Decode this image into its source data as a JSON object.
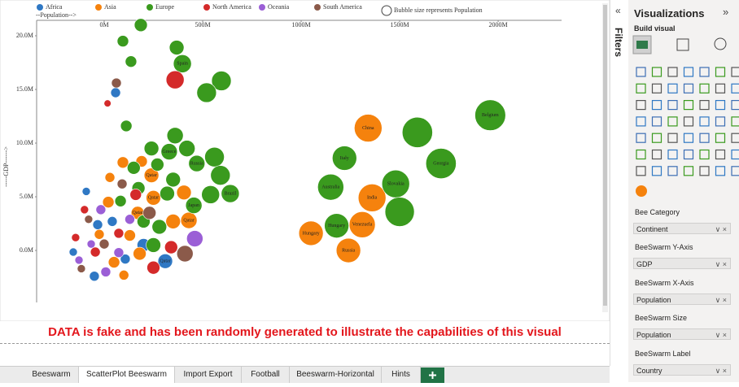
{
  "chart_data": {
    "type": "scatter",
    "x_label": "--Population-->",
    "y_label": "-----GDP------>",
    "size_legend": "Bubble size represents Population",
    "xlim": [
      -343000000,
      2322000000
    ],
    "ylim": [
      -5830000,
      21440000
    ],
    "xticks": [
      {
        "value": 0,
        "label": "0M"
      },
      {
        "value": 500000000,
        "label": "500M"
      },
      {
        "value": 1000000000,
        "label": "1000M"
      },
      {
        "value": 1500000000,
        "label": "1500M"
      },
      {
        "value": 2000000000,
        "label": "2000M"
      }
    ],
    "yticks": [
      {
        "value": 0,
        "label": "0.0M"
      },
      {
        "value": 5000000,
        "label": "5.0M"
      },
      {
        "value": 10000000,
        "label": "10.0M"
      },
      {
        "value": 15000000,
        "label": "15.0M"
      },
      {
        "value": 20000000,
        "label": "20.0M"
      }
    ],
    "series": [
      {
        "name": "Africa",
        "color": "#2f78c4",
        "x": [
          58000000,
          310000000,
          200000000,
          -33000000,
          -91000000,
          -157000000,
          41000000,
          107000000,
          -50000000
        ],
        "values": [
          14700000,
          -1000000,
          500000,
          2400000,
          5500000,
          -150000,
          2700000,
          -800000,
          -2400000
        ],
        "sizes": [
          36000000,
          220000000,
          140000000,
          36000000,
          9000000,
          9000000,
          36000000,
          36000000,
          36000000
        ],
        "labels": [
          null,
          "Qatar",
          null,
          null,
          null,
          null,
          null,
          null,
          null
        ]
      },
      {
        "name": "Asia",
        "color": "#f5820d",
        "x": [
          1340000000,
          1360000000,
          1310000000,
          1050000000,
          1240000000,
          240000000,
          250000000,
          430000000,
          170000000,
          350000000,
          405000000,
          180000000,
          95000000,
          190000000,
          29000000,
          21000000,
          130000000,
          50000000,
          100000000,
          -25000000
        ],
        "values": [
          11400000,
          4900000,
          2400000,
          1600000,
          0,
          7000000,
          4900000,
          2800000,
          3500000,
          2700000,
          5400000,
          -300000,
          8200000,
          8300000,
          6800000,
          4500000,
          1400000,
          -1100000,
          -2300000,
          1500000
        ],
        "sizes": [
          1500000000,
          1500000000,
          1280000000,
          1070000000,
          1070000000,
          220000000,
          220000000,
          320000000,
          140000000,
          220000000,
          220000000,
          140000000,
          80000000,
          80000000,
          36000000,
          80000000,
          80000000,
          80000000,
          36000000,
          36000000
        ],
        "labels": [
          "China",
          "India",
          "Venezuela",
          "Hungary",
          "Russia",
          "Qatar",
          "Qatar",
          "Qatar",
          "Qatar",
          null,
          null,
          null,
          null,
          null,
          null,
          null,
          null,
          null,
          null,
          null
        ]
      },
      {
        "name": "Europe",
        "color": "#3a9a1e",
        "x": [
          1960000000,
          1590000000,
          1710000000,
          1220000000,
          1480000000,
          1150000000,
          1500000000,
          1180000000,
          397000000,
          186000000,
          95000000,
          136000000,
          368000000,
          595000000,
          520000000,
          112000000,
          330000000,
          360000000,
          420000000,
          240000000,
          560000000,
          590000000,
          470000000,
          640000000,
          540000000,
          455000000,
          350000000,
          270000000,
          150000000,
          320000000,
          200000000,
          280000000,
          250000000,
          174000000,
          83000000
        ],
        "values": [
          12600000,
          11000000,
          8100000,
          8600000,
          6200000,
          5900000,
          3600000,
          2300000,
          17400000,
          21000000,
          19500000,
          17600000,
          18900000,
          15800000,
          14700000,
          11600000,
          9200000,
          10700000,
          9500000,
          9500000,
          8700000,
          7000000,
          8100000,
          5300000,
          5200000,
          4200000,
          6600000,
          8000000,
          7700000,
          5300000,
          2700000,
          2200000,
          500000,
          5800000,
          4600000
        ],
        "sizes": [
          1960000000,
          1900000000,
          1900000000,
          1070000000,
          1500000000,
          1280000000,
          1740000000,
          1070000000,
          440000000,
          140000000,
          80000000,
          80000000,
          220000000,
          570000000,
          570000000,
          80000000,
          320000000,
          320000000,
          320000000,
          220000000,
          570000000,
          570000000,
          320000000,
          440000000,
          440000000,
          320000000,
          220000000,
          140000000,
          140000000,
          220000000,
          140000000,
          220000000,
          220000000,
          140000000,
          80000000
        ],
        "labels": [
          "Belgium",
          null,
          "Georgia",
          "Italy",
          "Slovakia",
          "Australia",
          null,
          "Hungary",
          "Spain",
          null,
          null,
          null,
          null,
          null,
          null,
          null,
          "Greece",
          null,
          null,
          null,
          null,
          null,
          "Russia",
          "Brazil",
          null,
          "Japan",
          null,
          null,
          null,
          null,
          null,
          null,
          null,
          null,
          null
        ]
      },
      {
        "name": "North America",
        "color": "#d42a2a",
        "x": [
          360000000,
          17000000,
          340000000,
          160000000,
          74000000,
          -100000000,
          -145000000,
          -45000000,
          250000000
        ],
        "values": [
          15900000,
          13700000,
          300000,
          5200000,
          1600000,
          3800000,
          1200000,
          -150000,
          -1600000
        ],
        "sizes": [
          440000000,
          1000000,
          140000000,
          80000000,
          36000000,
          9000000,
          9000000,
          36000000,
          140000000
        ],
        "labels": [
          null,
          null,
          null,
          null,
          null,
          null,
          null,
          null,
          null
        ]
      },
      {
        "name": "Oceania",
        "color": "#9b5fd6",
        "x": [
          460000000,
          -17000000,
          -66000000,
          8000000,
          74000000,
          -128000000,
          130000000
        ],
        "values": [
          1100000,
          3800000,
          600000,
          -2000000,
          -200000,
          -900000,
          2900000
        ],
        "sizes": [
          320000000,
          36000000,
          9000000,
          36000000,
          36000000,
          9000000,
          36000000
        ],
        "labels": [
          null,
          null,
          null,
          null,
          null,
          null,
          null
        ]
      },
      {
        "name": "South America",
        "color": "#8b5a4a",
        "x": [
          62000000,
          410000000,
          230000000,
          0,
          -79000000,
          91000000,
          -116000000
        ],
        "values": [
          15600000,
          -300000,
          3500000,
          600000,
          2900000,
          6200000,
          -1700000
        ],
        "sizes": [
          36000000,
          320000000,
          140000000,
          36000000,
          9000000,
          36000000,
          9000000
        ],
        "labels": [
          null,
          null,
          null,
          null,
          null,
          null,
          null
        ]
      }
    ]
  },
  "notice": "DATA is fake and has been randomly generated to illustrate the capabilities of this visual",
  "filters_pane": {
    "title": "Filters"
  },
  "visualizations_pane": {
    "title": "Visualizations",
    "subtitle": "Build visual",
    "wells": [
      {
        "label": "Bee Category",
        "field": "Continent"
      },
      {
        "label": "BeeSwarm Y-Axis",
        "field": "GDP"
      },
      {
        "label": "BeeSwarm X-Axis",
        "field": "Population"
      },
      {
        "label": "BeeSwarm Size",
        "field": "Population"
      },
      {
        "label": "BeeSwarm Label",
        "field": "Country"
      }
    ]
  },
  "tabs": [
    "Beeswarm",
    "ScatterPlot Beeswarm",
    "Import Export",
    "Football",
    "Beeswarm-Horizontal",
    "Hints"
  ],
  "active_tab": 1
}
